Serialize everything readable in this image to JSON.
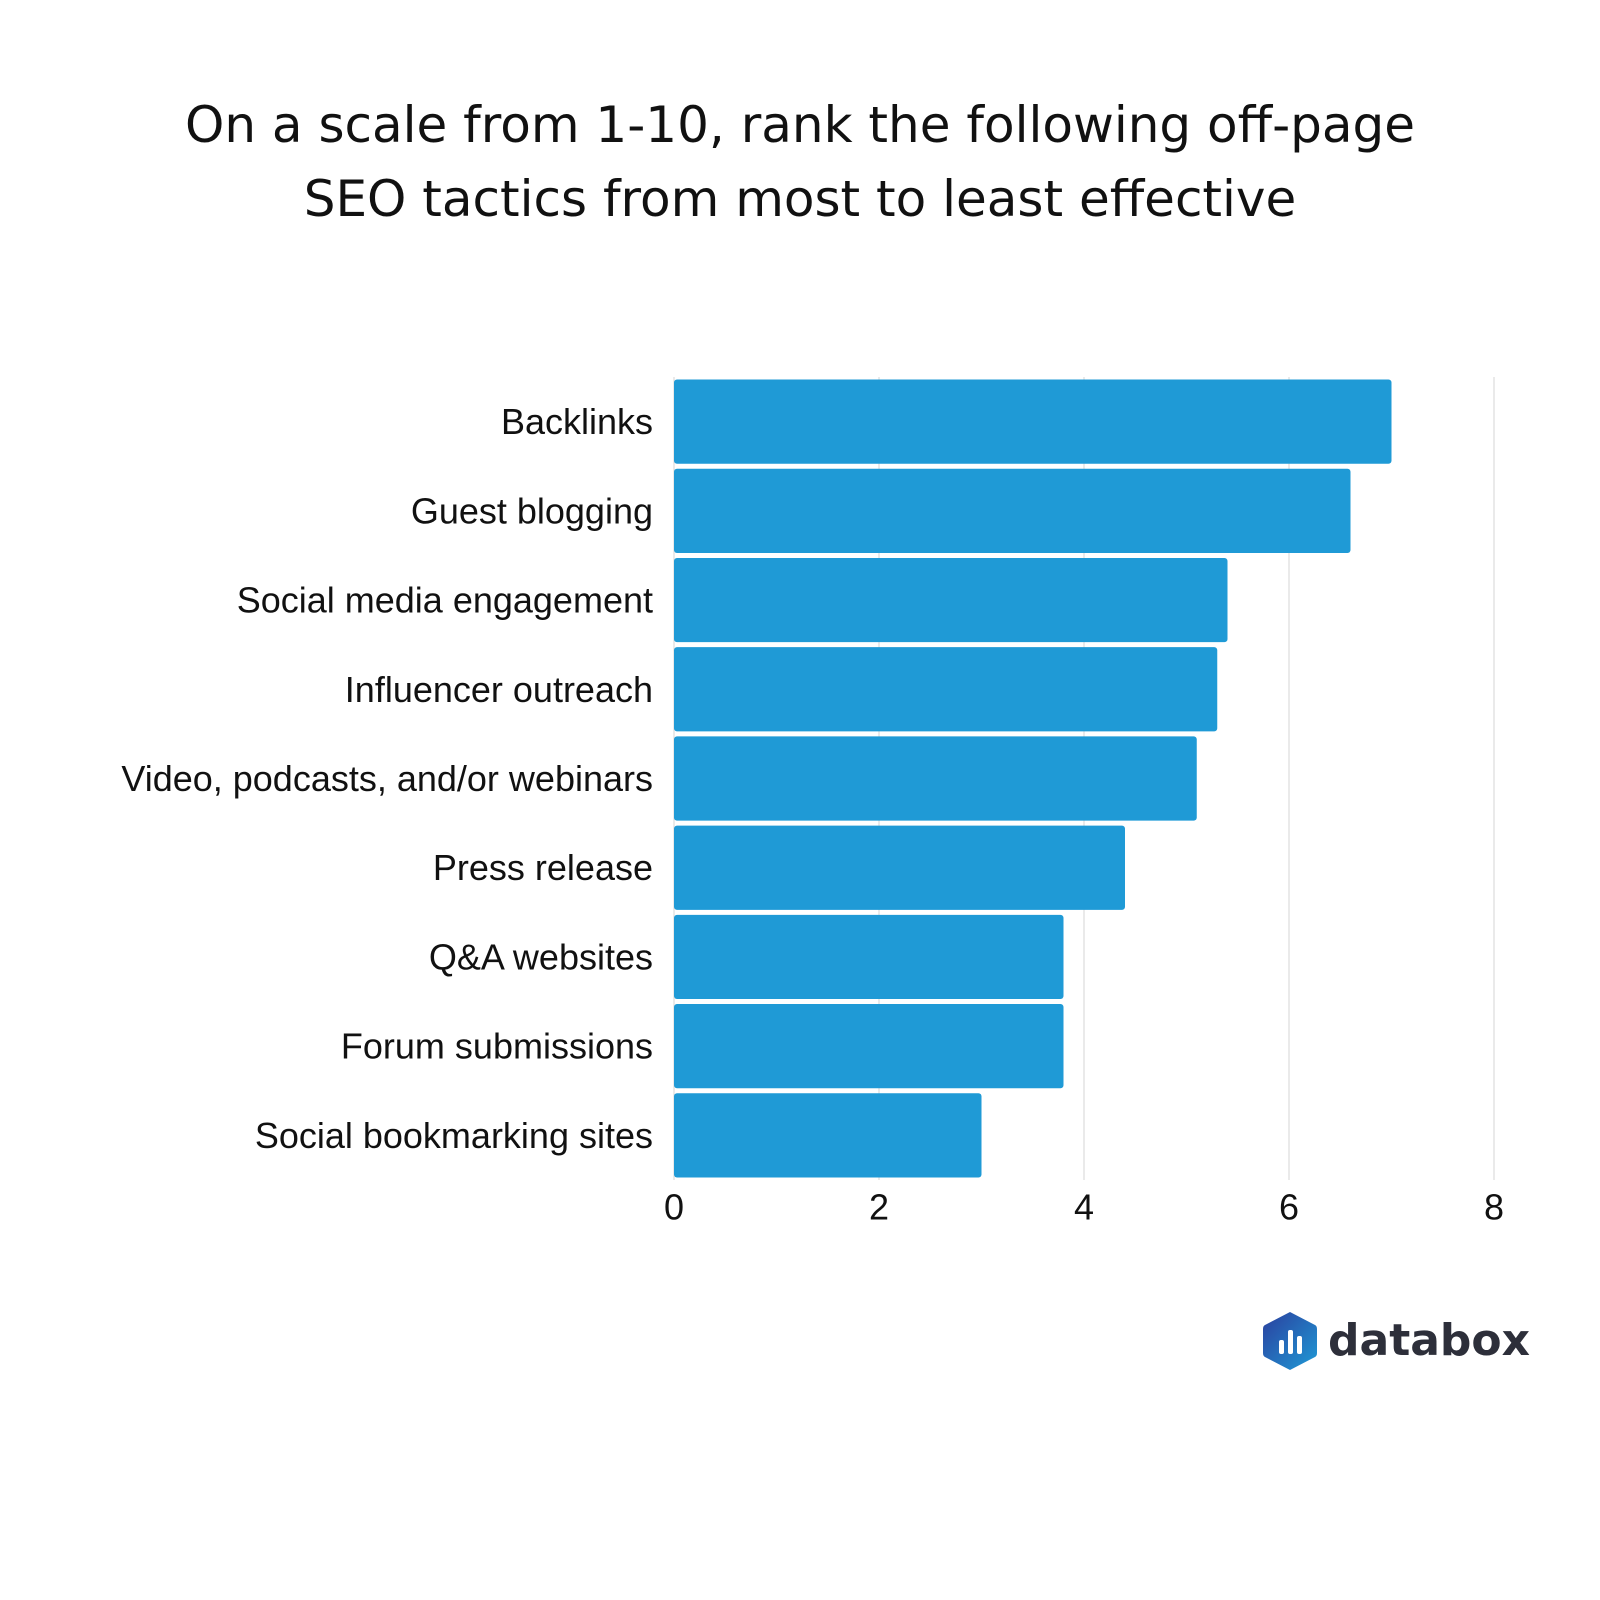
{
  "chart_data": {
    "type": "bar",
    "orientation": "horizontal",
    "title_lines": [
      "On a scale from 1-10, rank the following off-page",
      "SEO tactics from most to least effective"
    ],
    "categories": [
      "Backlinks",
      "Guest blogging",
      "Social media engagement",
      "Influencer outreach",
      "Video, podcasts, and/or webinars",
      "Press release",
      "Q&A websites",
      "Forum submissions",
      "Social bookmarking sites"
    ],
    "values": [
      7.0,
      6.6,
      5.4,
      5.3,
      5.1,
      4.4,
      3.8,
      3.8,
      3.0
    ],
    "xlim": [
      0,
      8
    ],
    "xticks": [
      0,
      2,
      4,
      6,
      8
    ],
    "xlabel": "",
    "ylabel": "",
    "grid": true,
    "bar_color": "#1f9ad6",
    "grid_color": "#e3e3e3"
  },
  "brand": {
    "name": "databox",
    "colors": [
      "#2b3f9e",
      "#1f9ad6"
    ]
  }
}
